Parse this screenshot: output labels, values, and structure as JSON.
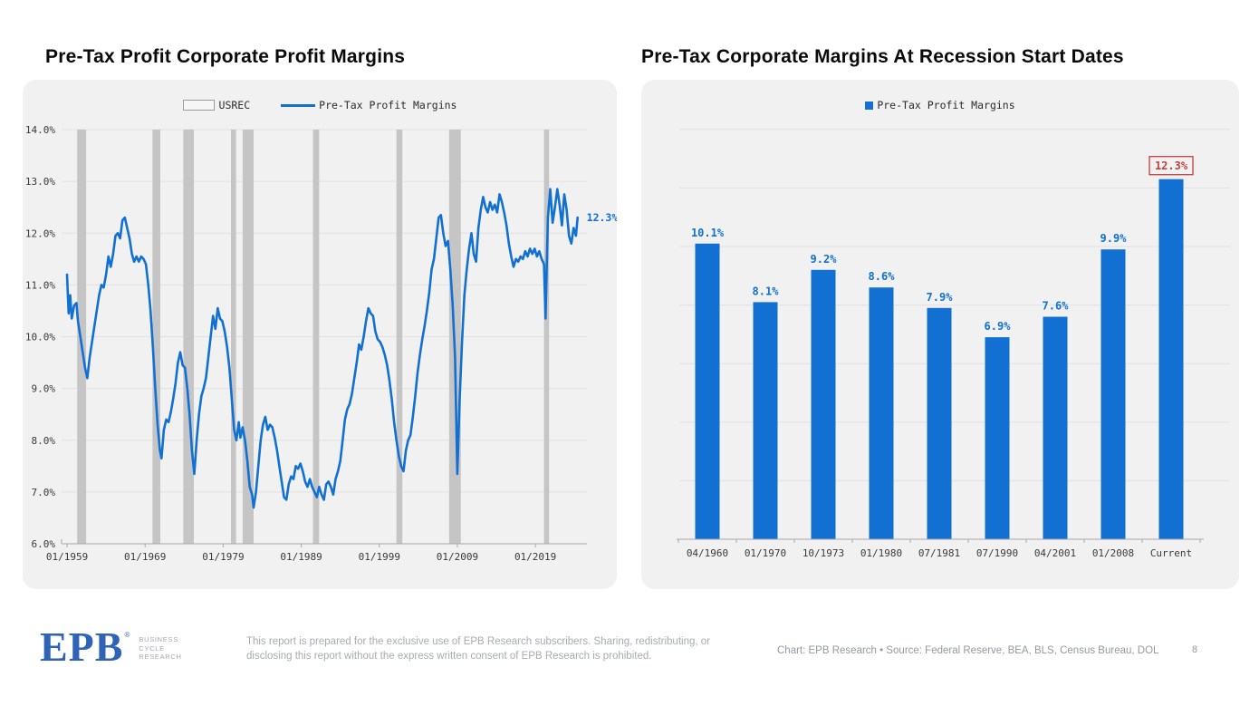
{
  "page": {
    "left_title": "Pre-Tax Profit Corporate Profit Margins",
    "right_title": "Pre-Tax Corporate Margins At Recession Start Dates",
    "page_number": "8"
  },
  "footer": {
    "logo_text": "EPB",
    "logo_registered": "®",
    "logo_sub": [
      "BUSINESS",
      "CYCLE",
      "RESEARCH"
    ],
    "disclaimer_line1": "This report is prepared for the exclusive use of EPB Research subscribers. Sharing, redistributing, or",
    "disclaimer_line2": "disclosing this report without the express written consent of EPB Research is prohibited.",
    "source": "Chart: EPB Research  •  Source: Federal Reserve, BEA, BLS, Census Bureau, DOL"
  },
  "colors": {
    "blue": "#1170d2",
    "red": "#c3413d",
    "recession_gray": "#c5c5c5",
    "grid": "#e1e1e1",
    "card_bg": "#f1f1f1",
    "axis": "#a8a8a8",
    "tick_text": "#3a3a3a"
  },
  "chart_data": [
    {
      "type": "line",
      "title": "Pre-Tax Profit Corporate Profit Margins",
      "legend": [
        "USREC",
        "Pre-Tax Profit Margins"
      ],
      "ylim": [
        6,
        14
      ],
      "xlim": [
        1958.3,
        2025.6
      ],
      "grid": true,
      "end_label": "12.3%",
      "end_label_value": 12.3,
      "y_ticks": [
        {
          "v": 14,
          "label": "14.0%"
        },
        {
          "v": 13,
          "label": "13.0%"
        },
        {
          "v": 12,
          "label": "12.0%"
        },
        {
          "v": 11,
          "label": "11.0%"
        },
        {
          "v": 10,
          "label": "10.0%"
        },
        {
          "v": 9,
          "label": "9.0%"
        },
        {
          "v": 8,
          "label": "8.0%"
        },
        {
          "v": 7,
          "label": "7.0%"
        },
        {
          "v": 6,
          "label": "6.0%"
        }
      ],
      "x_ticks": [
        {
          "year": 1959,
          "label": "01/1959"
        },
        {
          "year": 1969,
          "label": "01/1969"
        },
        {
          "year": 1979,
          "label": "01/1979"
        },
        {
          "year": 1989,
          "label": "01/1989"
        },
        {
          "year": 1999,
          "label": "01/1999"
        },
        {
          "year": 2009,
          "label": "01/2009"
        },
        {
          "year": 2019,
          "label": "01/2019"
        }
      ],
      "recessions": [
        [
          1960.3,
          1961.45
        ],
        [
          1969.95,
          1970.95
        ],
        [
          1973.9,
          1975.25
        ],
        [
          1980.0,
          1980.65
        ],
        [
          1981.5,
          1982.9
        ],
        [
          1990.5,
          1991.3
        ],
        [
          2001.2,
          2001.95
        ],
        [
          2007.95,
          2009.45
        ],
        [
          2020.1,
          2020.75
        ]
      ],
      "series": [
        {
          "name": "Pre-Tax Profit Margins",
          "points": [
            [
              1959.0,
              11.2
            ],
            [
              1959.2,
              10.45
            ],
            [
              1959.4,
              10.8
            ],
            [
              1959.6,
              10.35
            ],
            [
              1959.9,
              10.6
            ],
            [
              1960.2,
              10.65
            ],
            [
              1960.4,
              10.3
            ],
            [
              1960.7,
              10.0
            ],
            [
              1961.0,
              9.7
            ],
            [
              1961.3,
              9.4
            ],
            [
              1961.6,
              9.2
            ],
            [
              1961.9,
              9.6
            ],
            [
              1962.2,
              9.9
            ],
            [
              1962.5,
              10.2
            ],
            [
              1962.8,
              10.5
            ],
            [
              1963.1,
              10.8
            ],
            [
              1963.4,
              11.0
            ],
            [
              1963.7,
              10.95
            ],
            [
              1964.0,
              11.2
            ],
            [
              1964.3,
              11.55
            ],
            [
              1964.6,
              11.35
            ],
            [
              1964.9,
              11.6
            ],
            [
              1965.2,
              11.95
            ],
            [
              1965.5,
              12.0
            ],
            [
              1965.8,
              11.9
            ],
            [
              1966.1,
              12.25
            ],
            [
              1966.4,
              12.3
            ],
            [
              1966.7,
              12.1
            ],
            [
              1967.0,
              11.9
            ],
            [
              1967.3,
              11.6
            ],
            [
              1967.6,
              11.45
            ],
            [
              1967.9,
              11.55
            ],
            [
              1968.2,
              11.45
            ],
            [
              1968.5,
              11.55
            ],
            [
              1968.8,
              11.5
            ],
            [
              1969.1,
              11.4
            ],
            [
              1969.4,
              11.0
            ],
            [
              1969.7,
              10.5
            ],
            [
              1970.0,
              9.8
            ],
            [
              1970.3,
              9.0
            ],
            [
              1970.6,
              8.3
            ],
            [
              1970.9,
              7.8
            ],
            [
              1971.1,
              7.65
            ],
            [
              1971.4,
              8.2
            ],
            [
              1971.7,
              8.4
            ],
            [
              1972.0,
              8.35
            ],
            [
              1972.3,
              8.55
            ],
            [
              1972.6,
              8.8
            ],
            [
              1972.9,
              9.1
            ],
            [
              1973.2,
              9.5
            ],
            [
              1973.5,
              9.7
            ],
            [
              1973.8,
              9.45
            ],
            [
              1974.1,
              9.4
            ],
            [
              1974.4,
              9.0
            ],
            [
              1974.7,
              8.5
            ],
            [
              1975.0,
              7.8
            ],
            [
              1975.3,
              7.35
            ],
            [
              1975.6,
              8.0
            ],
            [
              1975.9,
              8.5
            ],
            [
              1976.2,
              8.85
            ],
            [
              1976.5,
              9.0
            ],
            [
              1976.8,
              9.2
            ],
            [
              1977.1,
              9.6
            ],
            [
              1977.4,
              10.0
            ],
            [
              1977.7,
              10.4
            ],
            [
              1978.0,
              10.15
            ],
            [
              1978.3,
              10.55
            ],
            [
              1978.6,
              10.35
            ],
            [
              1978.9,
              10.3
            ],
            [
              1979.2,
              10.1
            ],
            [
              1979.5,
              9.8
            ],
            [
              1979.8,
              9.4
            ],
            [
              1980.1,
              8.8
            ],
            [
              1980.4,
              8.2
            ],
            [
              1980.7,
              8.0
            ],
            [
              1981.0,
              8.35
            ],
            [
              1981.2,
              8.05
            ],
            [
              1981.5,
              8.25
            ],
            [
              1981.8,
              8.0
            ],
            [
              1982.1,
              7.6
            ],
            [
              1982.4,
              7.1
            ],
            [
              1982.7,
              6.95
            ],
            [
              1982.9,
              6.7
            ],
            [
              1983.2,
              7.0
            ],
            [
              1983.5,
              7.5
            ],
            [
              1983.8,
              8.0
            ],
            [
              1984.1,
              8.3
            ],
            [
              1984.4,
              8.45
            ],
            [
              1984.7,
              8.2
            ],
            [
              1985.0,
              8.3
            ],
            [
              1985.3,
              8.25
            ],
            [
              1985.6,
              8.05
            ],
            [
              1985.9,
              7.8
            ],
            [
              1986.2,
              7.5
            ],
            [
              1986.5,
              7.2
            ],
            [
              1986.8,
              6.9
            ],
            [
              1987.1,
              6.85
            ],
            [
              1987.4,
              7.15
            ],
            [
              1987.7,
              7.3
            ],
            [
              1988.0,
              7.25
            ],
            [
              1988.3,
              7.5
            ],
            [
              1988.6,
              7.45
            ],
            [
              1988.9,
              7.55
            ],
            [
              1989.2,
              7.4
            ],
            [
              1989.5,
              7.2
            ],
            [
              1989.8,
              7.1
            ],
            [
              1990.1,
              7.25
            ],
            [
              1990.4,
              7.1
            ],
            [
              1990.7,
              7.0
            ],
            [
              1991.0,
              6.9
            ],
            [
              1991.3,
              7.1
            ],
            [
              1991.6,
              6.95
            ],
            [
              1991.9,
              6.85
            ],
            [
              1992.2,
              7.15
            ],
            [
              1992.5,
              7.2
            ],
            [
              1992.8,
              7.1
            ],
            [
              1993.1,
              6.95
            ],
            [
              1993.4,
              7.25
            ],
            [
              1993.7,
              7.4
            ],
            [
              1994.0,
              7.6
            ],
            [
              1994.3,
              8.0
            ],
            [
              1994.6,
              8.4
            ],
            [
              1994.9,
              8.6
            ],
            [
              1995.2,
              8.7
            ],
            [
              1995.5,
              8.9
            ],
            [
              1995.8,
              9.2
            ],
            [
              1996.1,
              9.5
            ],
            [
              1996.4,
              9.85
            ],
            [
              1996.7,
              9.75
            ],
            [
              1997.0,
              10.0
            ],
            [
              1997.3,
              10.3
            ],
            [
              1997.6,
              10.55
            ],
            [
              1997.9,
              10.45
            ],
            [
              1998.2,
              10.4
            ],
            [
              1998.5,
              10.1
            ],
            [
              1998.8,
              9.95
            ],
            [
              1999.1,
              9.9
            ],
            [
              1999.4,
              9.8
            ],
            [
              1999.7,
              9.65
            ],
            [
              2000.0,
              9.45
            ],
            [
              2000.3,
              9.15
            ],
            [
              2000.6,
              8.8
            ],
            [
              2000.9,
              8.35
            ],
            [
              2001.2,
              8.0
            ],
            [
              2001.5,
              7.7
            ],
            [
              2001.8,
              7.5
            ],
            [
              2002.1,
              7.4
            ],
            [
              2002.4,
              7.8
            ],
            [
              2002.7,
              8.0
            ],
            [
              2003.0,
              8.1
            ],
            [
              2003.3,
              8.45
            ],
            [
              2003.6,
              8.85
            ],
            [
              2003.9,
              9.3
            ],
            [
              2004.2,
              9.65
            ],
            [
              2004.5,
              9.95
            ],
            [
              2004.8,
              10.2
            ],
            [
              2005.1,
              10.5
            ],
            [
              2005.4,
              10.85
            ],
            [
              2005.7,
              11.3
            ],
            [
              2006.0,
              11.5
            ],
            [
              2006.3,
              11.9
            ],
            [
              2006.6,
              12.3
            ],
            [
              2006.9,
              12.35
            ],
            [
              2007.2,
              12.0
            ],
            [
              2007.5,
              11.75
            ],
            [
              2007.8,
              11.85
            ],
            [
              2008.1,
              11.3
            ],
            [
              2008.4,
              10.6
            ],
            [
              2008.7,
              9.6
            ],
            [
              2009.0,
              7.35
            ],
            [
              2009.3,
              8.8
            ],
            [
              2009.6,
              9.9
            ],
            [
              2009.9,
              10.8
            ],
            [
              2010.2,
              11.3
            ],
            [
              2010.5,
              11.7
            ],
            [
              2010.8,
              12.0
            ],
            [
              2011.1,
              11.6
            ],
            [
              2011.4,
              11.45
            ],
            [
              2011.7,
              12.1
            ],
            [
              2012.0,
              12.45
            ],
            [
              2012.3,
              12.7
            ],
            [
              2012.6,
              12.5
            ],
            [
              2012.9,
              12.4
            ],
            [
              2013.2,
              12.6
            ],
            [
              2013.5,
              12.45
            ],
            [
              2013.8,
              12.55
            ],
            [
              2014.1,
              12.4
            ],
            [
              2014.4,
              12.75
            ],
            [
              2014.7,
              12.6
            ],
            [
              2015.0,
              12.4
            ],
            [
              2015.3,
              12.15
            ],
            [
              2015.6,
              11.8
            ],
            [
              2015.9,
              11.55
            ],
            [
              2016.2,
              11.35
            ],
            [
              2016.5,
              11.5
            ],
            [
              2016.8,
              11.45
            ],
            [
              2017.1,
              11.55
            ],
            [
              2017.4,
              11.5
            ],
            [
              2017.7,
              11.65
            ],
            [
              2018.0,
              11.55
            ],
            [
              2018.3,
              11.7
            ],
            [
              2018.6,
              11.6
            ],
            [
              2018.9,
              11.7
            ],
            [
              2019.2,
              11.55
            ],
            [
              2019.5,
              11.65
            ],
            [
              2019.8,
              11.5
            ],
            [
              2020.1,
              11.4
            ],
            [
              2020.3,
              10.35
            ],
            [
              2020.6,
              12.3
            ],
            [
              2020.9,
              12.85
            ],
            [
              2021.2,
              12.2
            ],
            [
              2021.5,
              12.5
            ],
            [
              2021.8,
              12.85
            ],
            [
              2022.1,
              12.55
            ],
            [
              2022.4,
              12.15
            ],
            [
              2022.7,
              12.75
            ],
            [
              2023.0,
              12.45
            ],
            [
              2023.3,
              11.95
            ],
            [
              2023.6,
              11.8
            ],
            [
              2023.9,
              12.1
            ],
            [
              2024.2,
              11.95
            ],
            [
              2024.4,
              12.3
            ]
          ]
        }
      ]
    },
    {
      "type": "bar",
      "title": "Pre-Tax Corporate Margins At Recession Start Dates",
      "legend": [
        "Pre-Tax Profit Margins"
      ],
      "categories": [
        "04/1960",
        "01/1970",
        "10/1973",
        "01/1980",
        "07/1981",
        "07/1990",
        "04/2001",
        "01/2008",
        "Current"
      ],
      "values": [
        10.1,
        8.1,
        9.2,
        8.6,
        7.9,
        6.9,
        7.6,
        9.9,
        12.3
      ],
      "labels": [
        "10.1%",
        "8.1%",
        "9.2%",
        "8.6%",
        "7.9%",
        "6.9%",
        "7.6%",
        "9.9%",
        "12.3%"
      ],
      "highlight_index": 8,
      "ylim": [
        0,
        14
      ],
      "gridline_step": 2,
      "grid": true,
      "legend_position": "top"
    }
  ]
}
